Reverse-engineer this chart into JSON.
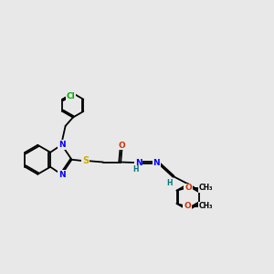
{
  "background_color": "#e8e8e8",
  "figsize": [
    3.0,
    3.0
  ],
  "dpi": 100,
  "atom_colors": {
    "N": "#0000ff",
    "S": "#ccaa00",
    "O": "#cc3300",
    "Cl": "#00aa00",
    "H": "#007777",
    "C": "#000000"
  },
  "bond_color": "#000000",
  "bond_lw": 1.3
}
